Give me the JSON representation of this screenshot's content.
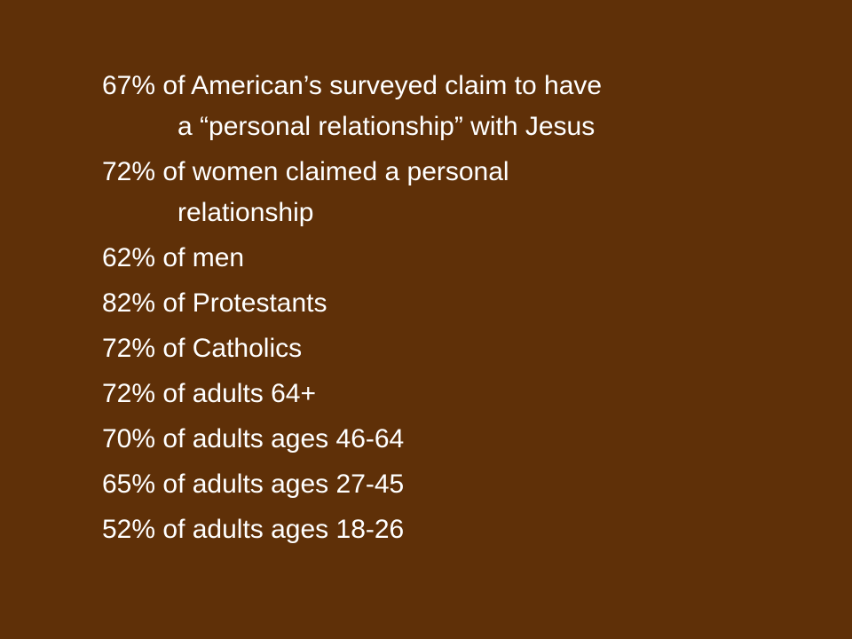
{
  "slide": {
    "items": [
      {
        "lines": [
          "67% of American’s surveyed claim to have",
          "a “personal relationship” with Jesus"
        ]
      },
      {
        "lines": [
          "72% of women claimed a personal",
          "relationship"
        ]
      },
      {
        "lines": [
          "62% of men"
        ]
      },
      {
        "lines": [
          "82% of Protestants"
        ]
      },
      {
        "lines": [
          "72% of Catholics"
        ]
      },
      {
        "lines": [
          "72% of adults 64+"
        ]
      },
      {
        "lines": [
          "70% of adults ages 46-64"
        ]
      },
      {
        "lines": [
          "65% of adults ages 27-45"
        ]
      },
      {
        "lines": [
          "52% of adults ages 18-26"
        ]
      }
    ]
  }
}
